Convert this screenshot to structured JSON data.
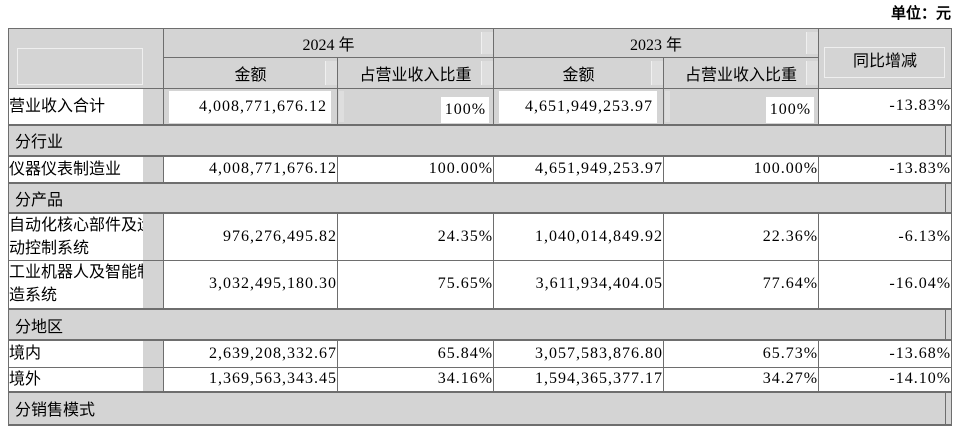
{
  "unit_label": "单位：元",
  "colors": {
    "shaded_cell": "#d4d4d4",
    "border": "#6e6e6e",
    "text": "#000000",
    "background": "#ffffff"
  },
  "table": {
    "header": {
      "year_2024": "2024 年",
      "year_2023": "2023 年",
      "amount": "金额",
      "ratio": "占营业收入比重",
      "yoy": "同比增减"
    },
    "rows": [
      {
        "type": "data",
        "highlight": true,
        "label": "营业收入合计",
        "amount_2024": "4,008,771,676.12",
        "ratio_2024": "100%",
        "amount_2023": "4,651,949,253.97",
        "ratio_2023": "100%",
        "yoy": "-13.83%"
      },
      {
        "type": "section",
        "label": "分行业"
      },
      {
        "type": "data",
        "label": "仪器仪表制造业",
        "amount_2024": "4,008,771,676.12",
        "ratio_2024": "100.00%",
        "amount_2023": "4,651,949,253.97",
        "ratio_2023": "100.00%",
        "yoy": "-13.83%"
      },
      {
        "type": "section",
        "label": "分产品"
      },
      {
        "type": "data",
        "label": "自动化核心部件及运动控制系统",
        "amount_2024": "976,276,495.82",
        "ratio_2024": "24.35%",
        "amount_2023": "1,040,014,849.92",
        "ratio_2023": "22.36%",
        "yoy": "-6.13%"
      },
      {
        "type": "data",
        "label": "工业机器人及智能制造系统",
        "amount_2024": "3,032,495,180.30",
        "ratio_2024": "75.65%",
        "amount_2023": "3,611,934,404.05",
        "ratio_2023": "77.64%",
        "yoy": "-16.04%"
      },
      {
        "type": "section",
        "label": "分地区"
      },
      {
        "type": "data",
        "label": "境内",
        "amount_2024": "2,639,208,332.67",
        "ratio_2024": "65.84%",
        "amount_2023": "3,057,583,876.80",
        "ratio_2023": "65.73%",
        "yoy": "-13.68%"
      },
      {
        "type": "data",
        "label": "境外",
        "amount_2024": "1,369,563,343.45",
        "ratio_2024": "34.16%",
        "amount_2023": "1,594,365,377.17",
        "ratio_2023": "34.27%",
        "yoy": "-14.10%"
      },
      {
        "type": "section",
        "label": "分销售模式"
      }
    ]
  }
}
